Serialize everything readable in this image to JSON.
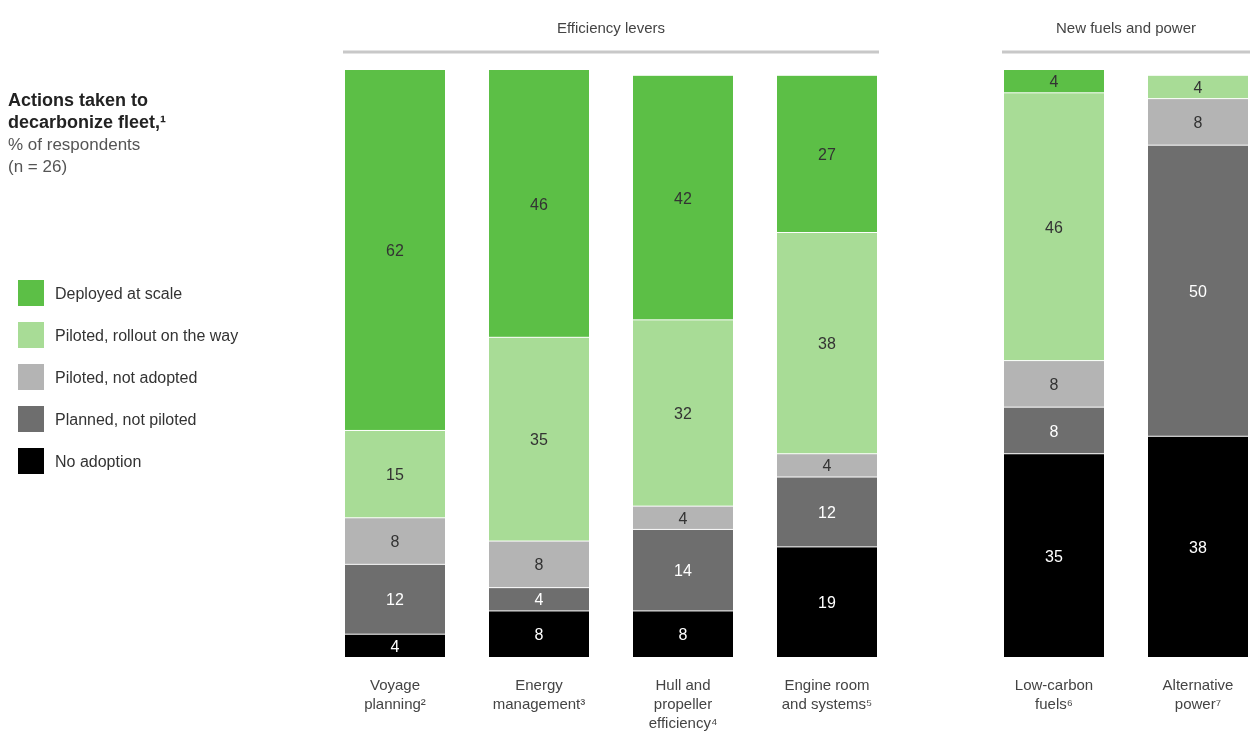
{
  "chart_data": {
    "type": "bar",
    "stacked": true,
    "data_labels": true,
    "legend": "left",
    "grid": false,
    "title": "Actions taken to decarbonize fleet,¹",
    "subtitle": "% of respondents (n = 26)",
    "annotations": [
      "Efficiency levers",
      "New fuels and power"
    ],
    "categories": [
      "Voyage planning²",
      "Energy management³",
      "Hull and propeller efficiency⁴",
      "Engine room and systems⁵",
      "Low-carbon fuels⁶",
      "Alternative power⁷"
    ],
    "series": [
      {
        "name": "No adoption",
        "color": "#000000",
        "values": [
          4,
          8,
          8,
          19,
          35,
          38
        ]
      },
      {
        "name": "Planned, not piloted",
        "color": "#6e6e6e",
        "values": [
          12,
          4,
          14,
          12,
          8,
          50
        ]
      },
      {
        "name": "Piloted, not adopted",
        "color": "#b4b4b4",
        "values": [
          8,
          8,
          4,
          4,
          8,
          8
        ]
      },
      {
        "name": "Piloted, rollout on the way",
        "color": "#a8dc96",
        "values": [
          15,
          35,
          32,
          38,
          46,
          4
        ]
      },
      {
        "name": "Deployed at scale",
        "color": "#5cbf46",
        "values": [
          62,
          46,
          42,
          27,
          4,
          null
        ]
      }
    ]
  }
}
